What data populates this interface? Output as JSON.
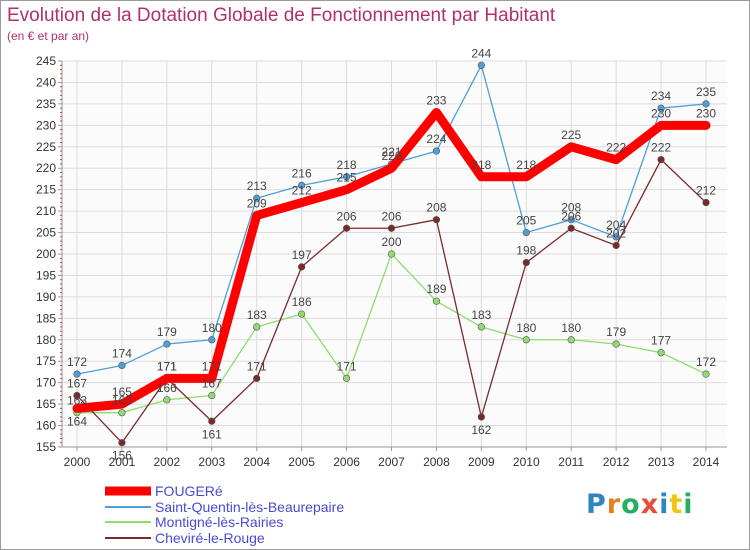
{
  "chart_data": {
    "type": "line",
    "title": "Evolution de la Dotation Globale de Fonctionnement par Habitant",
    "subtitle": "(en € et par an)",
    "x": [
      "2000",
      "2001",
      "2002",
      "2003",
      "2004",
      "2005",
      "2006",
      "2007",
      "2008",
      "2009",
      "2010",
      "2011",
      "2012",
      "2013",
      "2014"
    ],
    "ylim": [
      155,
      245
    ],
    "yticks": [
      155,
      160,
      165,
      170,
      175,
      180,
      185,
      190,
      195,
      200,
      205,
      210,
      215,
      220,
      225,
      230,
      235,
      240,
      245
    ],
    "grid": true,
    "legend_position": "bottom-left",
    "series": [
      {
        "name": "FOUGERé",
        "color": "#ff0000",
        "values": [
          164,
          165,
          171,
          171,
          209,
          212,
          215,
          220,
          233,
          218,
          218,
          225,
          222,
          230,
          230
        ]
      },
      {
        "name": "Saint-Quentin-lès-Beaurepaire",
        "color": "#4f9fd6",
        "values": [
          172,
          174,
          179,
          180,
          213,
          216,
          218,
          221,
          224,
          244,
          205,
          208,
          204,
          234,
          235
        ]
      },
      {
        "name": "Montigné-lès-Rairies",
        "color": "#90dc70",
        "values": [
          163,
          163,
          166,
          167,
          183,
          186,
          171,
          200,
          189,
          183,
          180,
          180,
          179,
          177,
          172
        ]
      },
      {
        "name": "Cheviré-le-Rouge",
        "color": "#7a2a2a",
        "values": [
          167,
          156,
          171,
          161,
          171,
          197,
          206,
          206,
          208,
          162,
          198,
          206,
          202,
          222,
          212
        ]
      }
    ]
  },
  "logo": {
    "text": "Proxiti"
  }
}
